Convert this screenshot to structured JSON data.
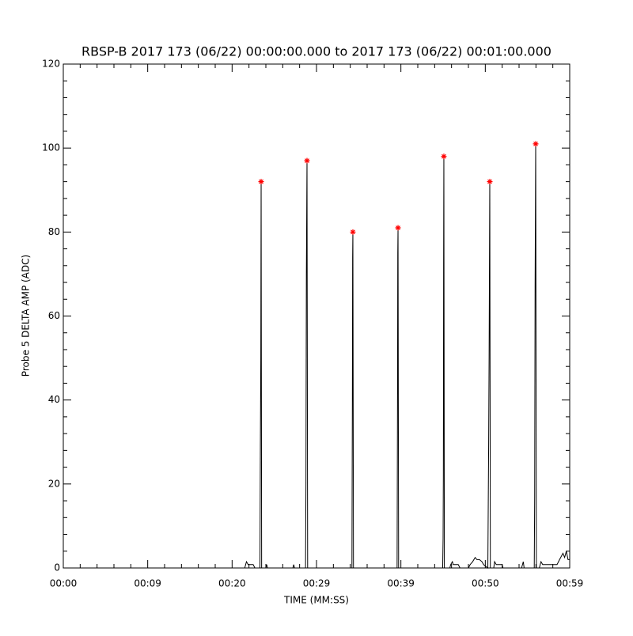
{
  "chart_data": {
    "type": "line",
    "title": "RBSP-B 2017 173 (06/22) 00:00:00.000 to 2017 173 (06/22) 00:01:00.000",
    "xlabel": "TIME (MM:SS)",
    "ylabel": "Probe 5 DELTA AMP (ADC)",
    "xlim": [
      0,
      60
    ],
    "ylim": [
      0,
      120
    ],
    "xticks": [
      {
        "value": 0,
        "label": "00:00"
      },
      {
        "value": 10,
        "label": "00:09"
      },
      {
        "value": 20,
        "label": "00:20"
      },
      {
        "value": 30,
        "label": "00:29"
      },
      {
        "value": 40,
        "label": "00:39"
      },
      {
        "value": 50,
        "label": "00:50"
      },
      {
        "value": 60,
        "label": "00:59"
      }
    ],
    "yticks": [
      0,
      20,
      40,
      60,
      80,
      100,
      120
    ],
    "minor_ticks": 5,
    "grid": false,
    "series": [
      {
        "color": "#000000",
        "x": [
          0,
          21.5,
          21.7,
          21.9,
          22.5,
          22.7,
          23.3,
          23.35,
          23.4,
          23.44,
          23.5,
          24.0,
          24.1,
          24.2,
          27.2,
          27.3,
          27.4,
          28.7,
          28.75,
          28.8,
          28.875,
          28.95,
          34.2,
          34.25,
          34.28,
          34.31,
          34.38,
          39.55,
          39.6,
          39.63,
          39.66,
          39.73,
          44.95,
          45.0,
          45.03,
          45.06,
          45.09,
          45.15,
          45.8,
          45.9,
          46.1,
          46.2,
          46.8,
          47.0,
          48.0,
          48.2,
          48.5,
          48.8,
          49.0,
          49.3,
          49.6,
          49.8,
          50.3,
          50.4,
          50.45,
          50.53,
          50.6,
          51.0,
          51.1,
          51.3,
          52.0,
          52.1,
          54.3,
          54.5,
          54.6,
          55.8,
          55.85,
          55.9,
          55.97,
          56.05,
          56.4,
          56.6,
          56.8,
          58.5,
          58.8,
          59.2,
          59.4,
          59.6,
          59.8,
          60
        ],
        "values": [
          0,
          0,
          1.5,
          0.8,
          0.8,
          0,
          0,
          29,
          50,
          92,
          0,
          0,
          0.8,
          0,
          0,
          0.8,
          0,
          0,
          20,
          70,
          97,
          0,
          0,
          40,
          74,
          80,
          0,
          0,
          42,
          75,
          81,
          0,
          0,
          7,
          22,
          72,
          98,
          0,
          0,
          0.8,
          1.5,
          0.8,
          0.8,
          0,
          0,
          0.8,
          1.5,
          2.5,
          2,
          2,
          1.5,
          0.8,
          0,
          30,
          50,
          92,
          0,
          0,
          1.5,
          0.8,
          0.8,
          0,
          0,
          1.5,
          0,
          0,
          17,
          67,
          101,
          0,
          0,
          1.5,
          0.8,
          0.8,
          2,
          3.5,
          2.5,
          4,
          2,
          2
        ]
      },
      {
        "color": "#ff0000",
        "marker": "*",
        "x": [
          23.44,
          28.875,
          34.31,
          39.66,
          45.09,
          50.53,
          55.97
        ],
        "values": [
          92,
          97,
          80,
          81,
          98,
          92,
          101
        ]
      }
    ]
  }
}
